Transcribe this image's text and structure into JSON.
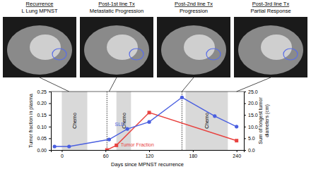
{
  "panels": [
    {
      "title": "Recurrence",
      "subtitle": "L Lung MPNST",
      "day": 10
    },
    {
      "title": "Post-1st line Tx",
      "subtitle": "Metastatic Progression",
      "day": 65
    },
    {
      "title": "Post-2nd line Tx",
      "subtitle": "Progression",
      "day": 165
    },
    {
      "title": "Post-3rd line Tx",
      "subtitle": "Partial Response",
      "day": 240
    }
  ],
  "chart_data": {
    "type": "line",
    "xlabel": "Days since MPNST recurrence",
    "ylabel": "Tumor fraction in plasma",
    "y2label": [
      "Sum of longest tumor",
      "diameters (cm)"
    ],
    "xlim": [
      -15,
      250
    ],
    "xticks": [
      0,
      60,
      120,
      180,
      240
    ],
    "ylim": [
      0,
      0.25
    ],
    "yticks": [
      {
        "value": 0,
        "label": "0.00"
      },
      {
        "value": 0.05,
        "label": "0.05"
      },
      {
        "value": 0.1,
        "label": "0.10"
      },
      {
        "value": 0.15,
        "label": "0.15"
      },
      {
        "value": 0.2,
        "label": "0.20"
      },
      {
        "value": 0.25,
        "label": "0.25"
      }
    ],
    "y2lim": [
      0,
      25
    ],
    "y2ticks": [
      {
        "value": 0,
        "label": "0.0"
      },
      {
        "value": 5,
        "label": "5.0"
      },
      {
        "value": 10,
        "label": "10.0"
      },
      {
        "value": 15,
        "label": "15.0"
      },
      {
        "value": 20,
        "label": "20.0"
      },
      {
        "value": 25,
        "label": "25.0"
      }
    ],
    "bands": [
      {
        "start": 0,
        "end": 35,
        "label": "Chemo"
      },
      {
        "start": 75,
        "end": 95,
        "label": "Chemo"
      },
      {
        "start": 170,
        "end": 228,
        "label": "Chemo"
      }
    ],
    "dotted_lines": [
      62,
      165
    ],
    "series": [
      {
        "name": "Tumor Fraction",
        "color": "#e8423f",
        "marker": "square",
        "axis": "y",
        "x": [
          62,
          75,
          120,
          240
        ],
        "values": [
          0,
          0.02,
          0.16,
          0.04
        ]
      },
      {
        "name": "SLD",
        "color": "#4a5fe0",
        "marker": "circle",
        "axis": "y2",
        "x": [
          -10,
          10,
          65,
          90,
          120,
          165,
          210,
          240
        ],
        "values": [
          1.5,
          1.5,
          4.5,
          9,
          12,
          22.5,
          14.5,
          10
        ]
      }
    ]
  }
}
